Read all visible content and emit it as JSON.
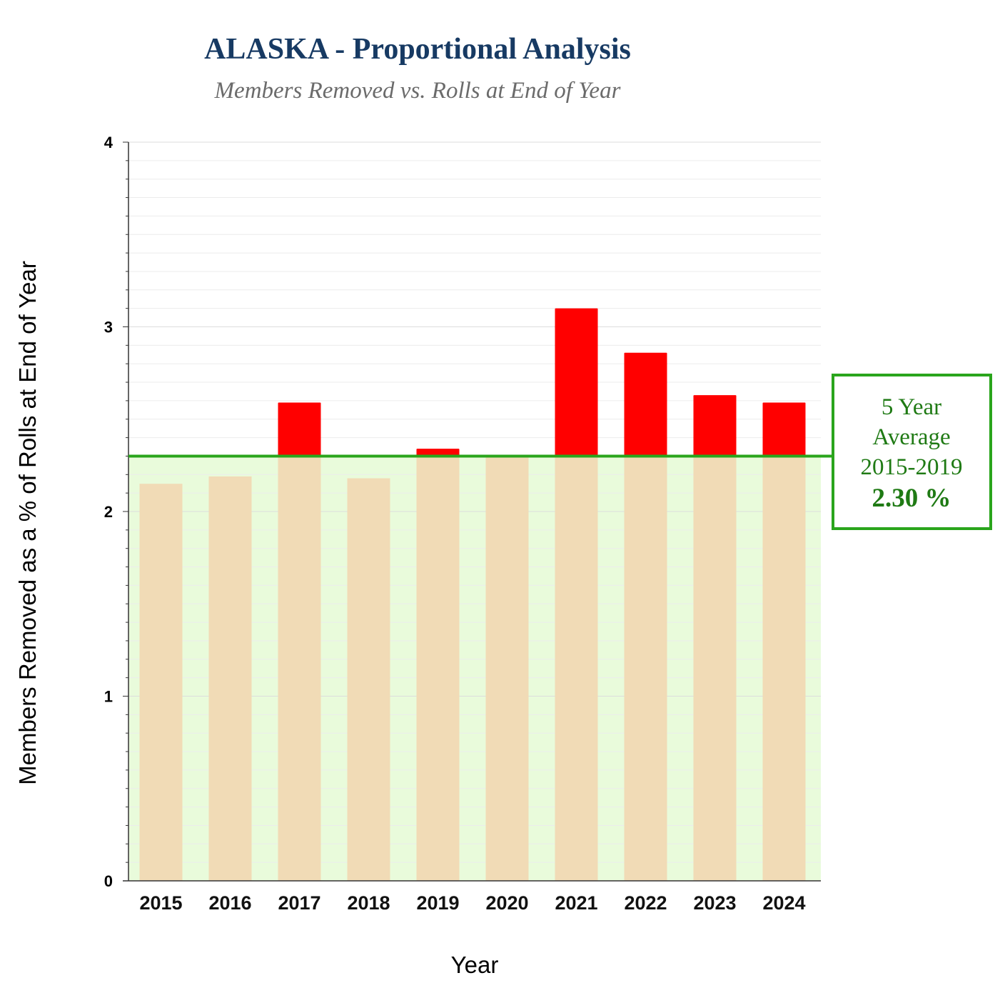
{
  "chart_data": {
    "type": "bar",
    "title": "ALASKA - Proportional Analysis",
    "subtitle": "Members Removed vs. Rolls at End of Year",
    "xlabel": "Year",
    "ylabel": "Members Removed as a % of Rolls at End of Year",
    "categories": [
      "2015",
      "2016",
      "2017",
      "2018",
      "2019",
      "2020",
      "2021",
      "2022",
      "2023",
      "2024"
    ],
    "values": [
      2.15,
      2.19,
      2.59,
      2.18,
      2.34,
      2.3,
      3.1,
      2.86,
      2.63,
      2.59
    ],
    "ylim": [
      0,
      4
    ],
    "yticks": [
      "0",
      "1",
      "2",
      "3",
      "4"
    ],
    "grid": true,
    "average": {
      "value": 2.3,
      "label_lines": [
        "5 Year",
        "Average",
        "2015-2019"
      ],
      "value_label": "2.30 %"
    },
    "colors": {
      "below_average_bar": "#f1dbb6",
      "above_average_bar": "#ff0000",
      "average_region": "#e9fbdb",
      "average_line": "#2aa51c",
      "average_text": "#1f7a14",
      "title": "#173a63",
      "subtitle": "#6b6b6b"
    }
  }
}
